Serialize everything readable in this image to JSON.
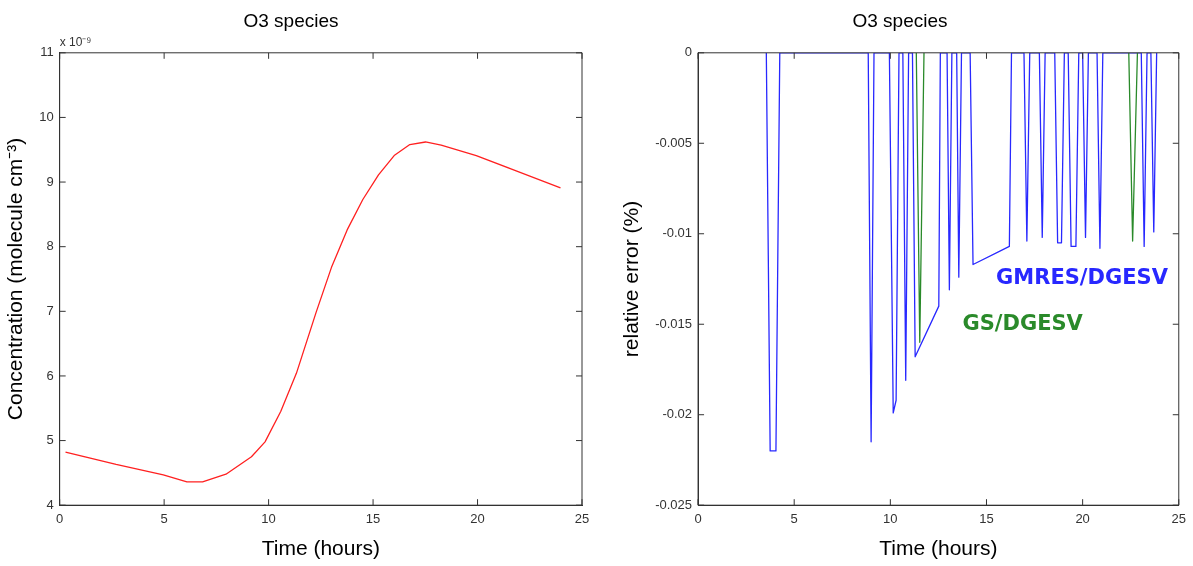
{
  "chart_data": [
    {
      "type": "line",
      "title": "O3 species",
      "xlabel": "Time (hours)",
      "ylabel": "Concentration (molecule cm⁻³)",
      "annotations": [
        "x 10⁻⁹"
      ],
      "xlim": [
        0,
        25
      ],
      "xticks": [
        0,
        5,
        10,
        15,
        20,
        25
      ],
      "ylim": [
        4,
        11
      ],
      "yticks": [
        4,
        5,
        6,
        7,
        8,
        9,
        10,
        11
      ],
      "grid": false,
      "legend": false,
      "marker": "none",
      "line_style": "solid",
      "series": [
        {
          "color": "#ff2020",
          "x": [
            0.28,
            2.7,
            4.96,
            6.09,
            6.84,
            7.96,
            9.18,
            9.83,
            10.58,
            11.33,
            12.27,
            13.01,
            13.76,
            14.51,
            15.26,
            16.01,
            16.76,
            17.51,
            18.26,
            19.94,
            21.63,
            23.97
          ],
          "values": [
            4.82,
            4.63,
            4.47,
            4.36,
            4.36,
            4.48,
            4.75,
            4.98,
            5.45,
            6.04,
            6.98,
            7.68,
            8.26,
            8.73,
            9.11,
            9.41,
            9.58,
            9.62,
            9.57,
            9.41,
            9.2,
            8.91
          ]
        }
      ]
    },
    {
      "type": "line",
      "title": "O3 species",
      "xlabel": "Time (hours)",
      "ylabel": "relative error (%)",
      "xlim": [
        0,
        25
      ],
      "xticks": [
        0,
        5,
        10,
        15,
        20,
        25
      ],
      "ylim": [
        -0.025,
        0
      ],
      "yticks": [
        -0.025,
        -0.02,
        -0.015,
        -0.01,
        -0.005,
        0
      ],
      "grid": false,
      "legend": false,
      "marker": "none",
      "line_style": "solid",
      "series": [
        {
          "name": "GMRES/DGESV",
          "color": "#2828ff",
          "x": [
            3.55,
            3.75,
            4.05,
            4.25,
            8.85,
            9.0,
            9.15,
            9.95,
            10.15,
            10.3,
            10.45,
            10.65,
            10.8,
            10.95,
            11.15,
            11.29,
            12.52,
            12.6,
            12.95,
            13.07,
            13.2,
            13.45,
            13.56,
            13.7,
            14.15,
            14.3,
            16.19,
            16.3,
            16.95,
            17.1,
            17.25,
            17.75,
            17.9,
            18.05,
            18.55,
            18.7,
            18.9,
            19.05,
            19.25,
            19.4,
            19.65,
            19.8,
            20.0,
            20.15,
            20.3,
            20.75,
            20.9,
            21.05,
            23.05,
            23.2,
            23.35,
            23.55,
            23.7,
            23.85
          ],
          "values": [
            0,
            -0.022,
            -0.022,
            0,
            0,
            -0.0215,
            0,
            0,
            -0.0199,
            -0.0192,
            0,
            0,
            -0.0181,
            0,
            0,
            -0.0168,
            -0.014,
            0,
            0,
            -0.0131,
            0,
            0,
            -0.0124,
            0,
            0,
            -0.0117,
            -0.0107,
            0,
            0,
            -0.0104,
            0,
            0,
            -0.0102,
            0,
            0,
            -0.0105,
            -0.0105,
            0,
            0,
            -0.0107,
            -0.0107,
            0,
            0,
            -0.0102,
            0,
            0,
            -0.0108,
            0,
            0,
            -0.0107,
            0,
            0,
            -0.0099,
            0
          ]
        },
        {
          "name": "GS/DGESV",
          "color": "#2a8a2a",
          "x": [
            11.35,
            11.53,
            11.75,
            17,
            22.4,
            22.6,
            22.85
          ],
          "values": [
            0,
            -0.016,
            0,
            null,
            0,
            -0.0104,
            0
          ]
        }
      ]
    }
  ]
}
